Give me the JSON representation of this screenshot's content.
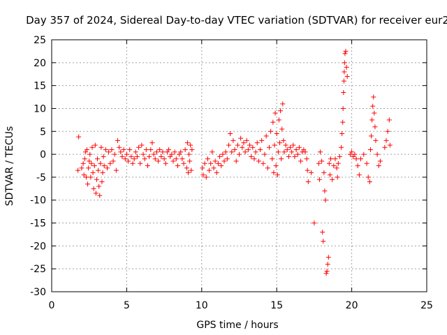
{
  "chart_data": {
    "type": "scatter",
    "title": "Day 357 of 2024, Sidereal Day-to-day VTEC variation (SDTVAR) for receiver eur2",
    "xlabel": "GPS time / hours",
    "ylabel": "SDTVAR / TECUs",
    "xlim": [
      0,
      25
    ],
    "ylim": [
      -30,
      25
    ],
    "xticks": [
      0,
      5,
      10,
      15,
      20,
      25
    ],
    "yticks": [
      -30,
      -25,
      -20,
      -15,
      -10,
      -5,
      0,
      5,
      10,
      15,
      20,
      25
    ],
    "grid": true,
    "marker": "+",
    "color": "#ff0000",
    "series": [
      {
        "name": "SDTVAR",
        "points": [
          [
            1.75,
            -3.5
          ],
          [
            1.8,
            3.8
          ],
          [
            2.0,
            -3.0
          ],
          [
            2.1,
            -2.0
          ],
          [
            2.15,
            -4.5
          ],
          [
            2.2,
            -1.0
          ],
          [
            2.25,
            0.5
          ],
          [
            2.3,
            -5.0
          ],
          [
            2.35,
            1.0
          ],
          [
            2.4,
            -6.5
          ],
          [
            2.45,
            -3.0
          ],
          [
            2.5,
            -1.5
          ],
          [
            2.55,
            0.0
          ],
          [
            2.6,
            -5.0
          ],
          [
            2.65,
            -2.0
          ],
          [
            2.7,
            1.5
          ],
          [
            2.75,
            -4.0
          ],
          [
            2.8,
            -7.5
          ],
          [
            2.85,
            -2.5
          ],
          [
            2.9,
            2.0
          ],
          [
            2.95,
            -8.5
          ],
          [
            3.0,
            -5.5
          ],
          [
            3.05,
            -1.0
          ],
          [
            3.1,
            -3.5
          ],
          [
            3.15,
            -7.0
          ],
          [
            3.2,
            -9.0
          ],
          [
            3.25,
            -2.0
          ],
          [
            3.3,
            1.5
          ],
          [
            3.35,
            -6.0
          ],
          [
            3.4,
            -4.0
          ],
          [
            3.45,
            -0.5
          ],
          [
            3.5,
            -2.5
          ],
          [
            3.6,
            1.0
          ],
          [
            3.7,
            -3.0
          ],
          [
            3.8,
            0.5
          ],
          [
            3.9,
            -2.0
          ],
          [
            4.0,
            1.0
          ],
          [
            4.1,
            -1.5
          ],
          [
            4.2,
            0.0
          ],
          [
            4.3,
            -3.5
          ],
          [
            4.4,
            3.0
          ],
          [
            4.5,
            1.5
          ],
          [
            4.6,
            0.5
          ],
          [
            4.7,
            -0.5
          ],
          [
            4.8,
            1.0
          ],
          [
            4.9,
            -1.0
          ],
          [
            5.0,
            0.0
          ],
          [
            5.1,
            -1.5
          ],
          [
            5.2,
            1.0
          ],
          [
            5.3,
            -0.5
          ],
          [
            5.4,
            -2.0
          ],
          [
            5.5,
            -1.0
          ],
          [
            5.6,
            0.5
          ],
          [
            5.7,
            -0.5
          ],
          [
            5.8,
            1.5
          ],
          [
            5.9,
            -2.0
          ],
          [
            6.0,
            2.0
          ],
          [
            6.1,
            0.0
          ],
          [
            6.2,
            -1.0
          ],
          [
            6.3,
            1.0
          ],
          [
            6.4,
            -2.5
          ],
          [
            6.5,
            -0.5
          ],
          [
            6.6,
            1.0
          ],
          [
            6.7,
            2.5
          ],
          [
            6.8,
            0.0
          ],
          [
            6.9,
            -1.0
          ],
          [
            7.0,
            0.5
          ],
          [
            7.1,
            -1.5
          ],
          [
            7.2,
            1.0
          ],
          [
            7.3,
            -0.5
          ],
          [
            7.4,
            0.5
          ],
          [
            7.5,
            -1.0
          ],
          [
            7.6,
            -2.0
          ],
          [
            7.7,
            0.5
          ],
          [
            7.8,
            1.0
          ],
          [
            7.9,
            -0.5
          ],
          [
            8.0,
            0.0
          ],
          [
            8.1,
            -1.5
          ],
          [
            8.2,
            0.5
          ],
          [
            8.3,
            -1.0
          ],
          [
            8.4,
            -2.5
          ],
          [
            8.5,
            0.0
          ],
          [
            8.6,
            0.5
          ],
          [
            8.7,
            -1.0
          ],
          [
            8.8,
            -2.0
          ],
          [
            8.9,
            1.0
          ],
          [
            9.0,
            -3.0
          ],
          [
            9.05,
            2.5
          ],
          [
            9.1,
            -4.0
          ],
          [
            9.15,
            0.0
          ],
          [
            9.2,
            -1.5
          ],
          [
            9.25,
            2.0
          ],
          [
            9.3,
            -3.5
          ],
          [
            9.35,
            1.0
          ],
          [
            10.05,
            -3.0
          ],
          [
            10.1,
            -4.5
          ],
          [
            10.2,
            -2.0
          ],
          [
            10.3,
            -5.0
          ],
          [
            10.4,
            -1.0
          ],
          [
            10.5,
            -3.5
          ],
          [
            10.6,
            -2.0
          ],
          [
            10.7,
            0.5
          ],
          [
            10.8,
            -3.0
          ],
          [
            10.9,
            -1.5
          ],
          [
            11.0,
            -4.0
          ],
          [
            11.1,
            -2.0
          ],
          [
            11.2,
            -0.5
          ],
          [
            11.3,
            -2.5
          ],
          [
            11.4,
            0.0
          ],
          [
            11.5,
            -1.5
          ],
          [
            11.6,
            0.5
          ],
          [
            11.7,
            -1.0
          ],
          [
            11.8,
            2.0
          ],
          [
            11.9,
            4.5
          ],
          [
            12.0,
            0.5
          ],
          [
            12.1,
            3.0
          ],
          [
            12.2,
            1.0
          ],
          [
            12.3,
            -1.5
          ],
          [
            12.4,
            2.0
          ],
          [
            12.5,
            0.0
          ],
          [
            12.6,
            3.5
          ],
          [
            12.7,
            1.5
          ],
          [
            12.8,
            2.5
          ],
          [
            12.9,
            0.5
          ],
          [
            13.0,
            3.0
          ],
          [
            13.1,
            1.0
          ],
          [
            13.2,
            2.0
          ],
          [
            13.3,
            -0.5
          ],
          [
            13.4,
            1.5
          ],
          [
            13.5,
            -1.0
          ],
          [
            13.6,
            0.5
          ],
          [
            13.7,
            2.5
          ],
          [
            13.8,
            -1.5
          ],
          [
            13.9,
            1.0
          ],
          [
            14.0,
            3.0
          ],
          [
            14.1,
            -2.0
          ],
          [
            14.2,
            0.0
          ],
          [
            14.3,
            4.0
          ],
          [
            14.4,
            -3.0
          ],
          [
            14.5,
            1.5
          ],
          [
            14.6,
            5.0
          ],
          [
            14.7,
            -1.0
          ],
          [
            14.75,
            7.0
          ],
          [
            14.8,
            -4.0
          ],
          [
            14.85,
            2.0
          ],
          [
            14.9,
            9.0
          ],
          [
            14.95,
            -2.5
          ],
          [
            15.0,
            4.5
          ],
          [
            15.05,
            -4.5
          ],
          [
            15.1,
            0.5
          ],
          [
            15.15,
            7.5
          ],
          [
            15.2,
            2.5
          ],
          [
            15.25,
            9.5
          ],
          [
            15.3,
            -1.0
          ],
          [
            15.35,
            5.5
          ],
          [
            15.4,
            11.0
          ],
          [
            15.45,
            3.0
          ],
          [
            15.5,
            0.5
          ],
          [
            15.6,
            2.0
          ],
          [
            15.7,
            1.0
          ],
          [
            15.8,
            -0.5
          ],
          [
            15.9,
            1.5
          ],
          [
            16.0,
            0.5
          ],
          [
            16.1,
            2.0
          ],
          [
            16.2,
            -0.5
          ],
          [
            16.3,
            1.0
          ],
          [
            16.4,
            0.0
          ],
          [
            16.5,
            1.5
          ],
          [
            16.6,
            -1.5
          ],
          [
            16.7,
            0.5
          ],
          [
            16.8,
            1.0
          ],
          [
            16.9,
            0.5
          ],
          [
            17.0,
            -1.0
          ],
          [
            17.05,
            -3.5
          ],
          [
            17.1,
            -6.0
          ],
          [
            17.3,
            -4.0
          ],
          [
            17.5,
            -15.0
          ],
          [
            17.8,
            -2.0
          ],
          [
            17.85,
            -5.5
          ],
          [
            17.9,
            0.5
          ],
          [
            18.0,
            -1.5
          ],
          [
            18.05,
            -17.0
          ],
          [
            18.1,
            -19.0
          ],
          [
            18.15,
            -4.0
          ],
          [
            18.2,
            -8.0
          ],
          [
            18.25,
            -10.0
          ],
          [
            18.3,
            -26.0
          ],
          [
            18.35,
            -25.5
          ],
          [
            18.4,
            -24.0
          ],
          [
            18.45,
            -22.5
          ],
          [
            18.5,
            -2.0
          ],
          [
            18.55,
            -4.5
          ],
          [
            18.6,
            -1.0
          ],
          [
            18.7,
            -5.5
          ],
          [
            18.8,
            -2.5
          ],
          [
            18.9,
            -1.0
          ],
          [
            19.0,
            -3.0
          ],
          [
            19.05,
            -5.0
          ],
          [
            19.1,
            -2.0
          ],
          [
            19.2,
            -0.5
          ],
          [
            19.3,
            1.5
          ],
          [
            19.35,
            4.5
          ],
          [
            19.4,
            7.0
          ],
          [
            19.42,
            10.0
          ],
          [
            19.45,
            13.5
          ],
          [
            19.48,
            16.0
          ],
          [
            19.5,
            18.0
          ],
          [
            19.52,
            20.0
          ],
          [
            19.55,
            22.0
          ],
          [
            19.6,
            22.5
          ],
          [
            19.65,
            19.0
          ],
          [
            19.7,
            17.0
          ],
          [
            19.9,
            0.0
          ],
          [
            20.0,
            0.5
          ],
          [
            20.1,
            -0.5
          ],
          [
            20.2,
            0.0
          ],
          [
            20.3,
            -1.0
          ],
          [
            20.4,
            -2.5
          ],
          [
            20.5,
            -4.5
          ],
          [
            20.6,
            -1.0
          ],
          [
            20.8,
            0.0
          ],
          [
            21.0,
            -2.0
          ],
          [
            21.1,
            -5.0
          ],
          [
            21.2,
            -6.0
          ],
          [
            21.25,
            1.0
          ],
          [
            21.3,
            4.0
          ],
          [
            21.35,
            7.5
          ],
          [
            21.4,
            10.5
          ],
          [
            21.45,
            12.5
          ],
          [
            21.5,
            9.0
          ],
          [
            21.55,
            6.0
          ],
          [
            21.6,
            3.0
          ],
          [
            21.7,
            0.0
          ],
          [
            21.8,
            -2.5
          ],
          [
            21.9,
            -1.5
          ],
          [
            22.2,
            1.5
          ],
          [
            22.3,
            3.0
          ],
          [
            22.4,
            5.0
          ],
          [
            22.5,
            7.5
          ],
          [
            22.55,
            2.0
          ]
        ]
      }
    ]
  }
}
